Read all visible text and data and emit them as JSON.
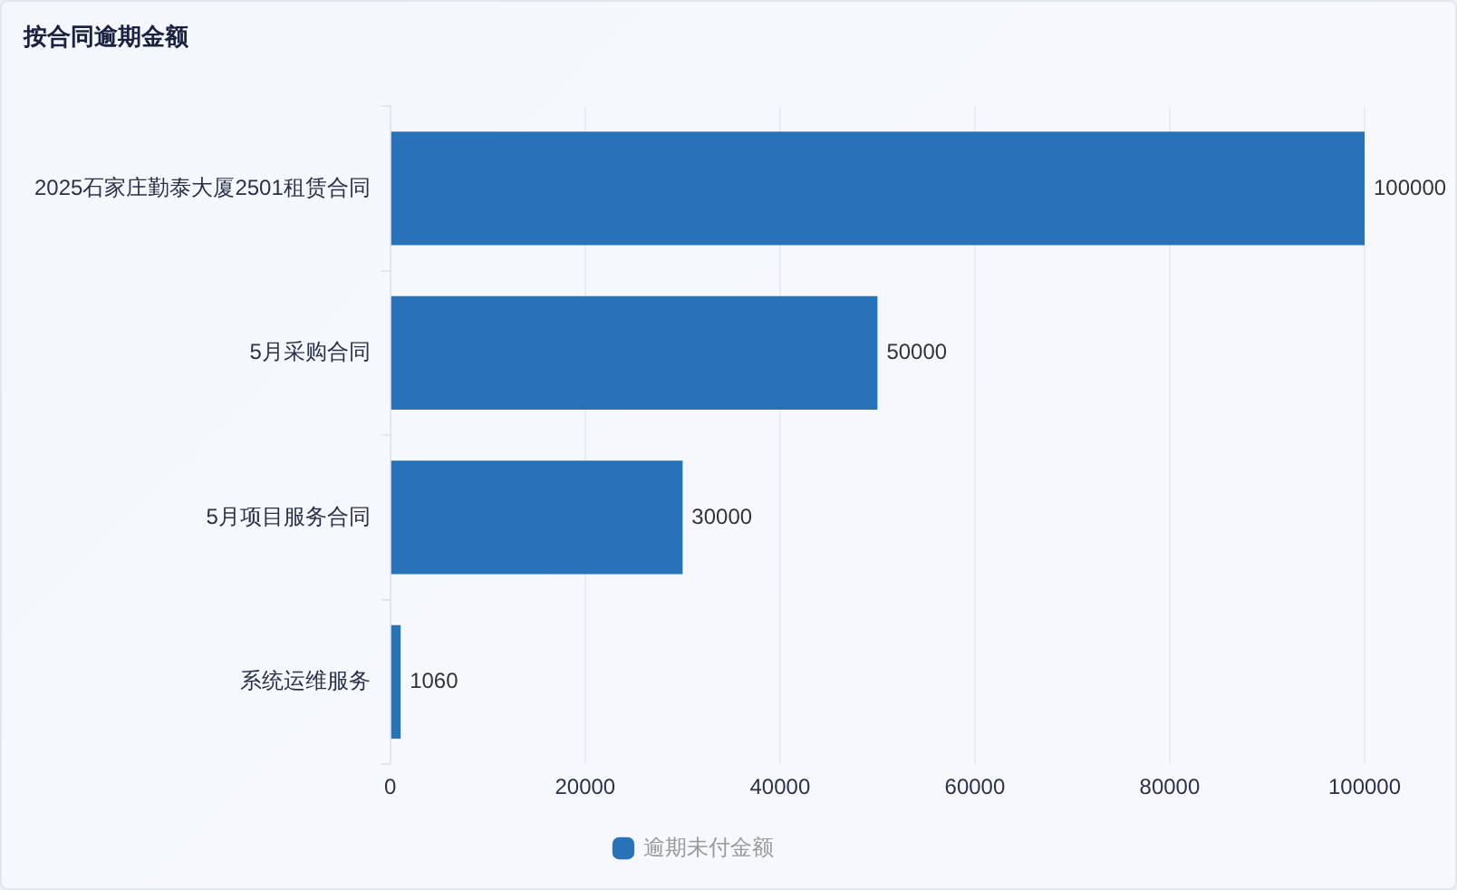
{
  "chart_data": {
    "type": "bar",
    "title": "按合同逾期金额",
    "orientation": "horizontal",
    "categories": [
      "2025石家庄勤泰大厦2501租赁合同",
      "5月采购合同",
      "5月项目服务合同",
      "系统运维服务"
    ],
    "series": [
      {
        "name": "逾期未付金额",
        "color": "#2872b8",
        "values": [
          100000,
          50000,
          30000,
          1060
        ]
      }
    ],
    "xlim": [
      0,
      100000
    ],
    "xticks": [
      0,
      20000,
      40000,
      60000,
      80000,
      100000
    ],
    "grid": "x",
    "legend": "bottom",
    "data_labels": true
  }
}
